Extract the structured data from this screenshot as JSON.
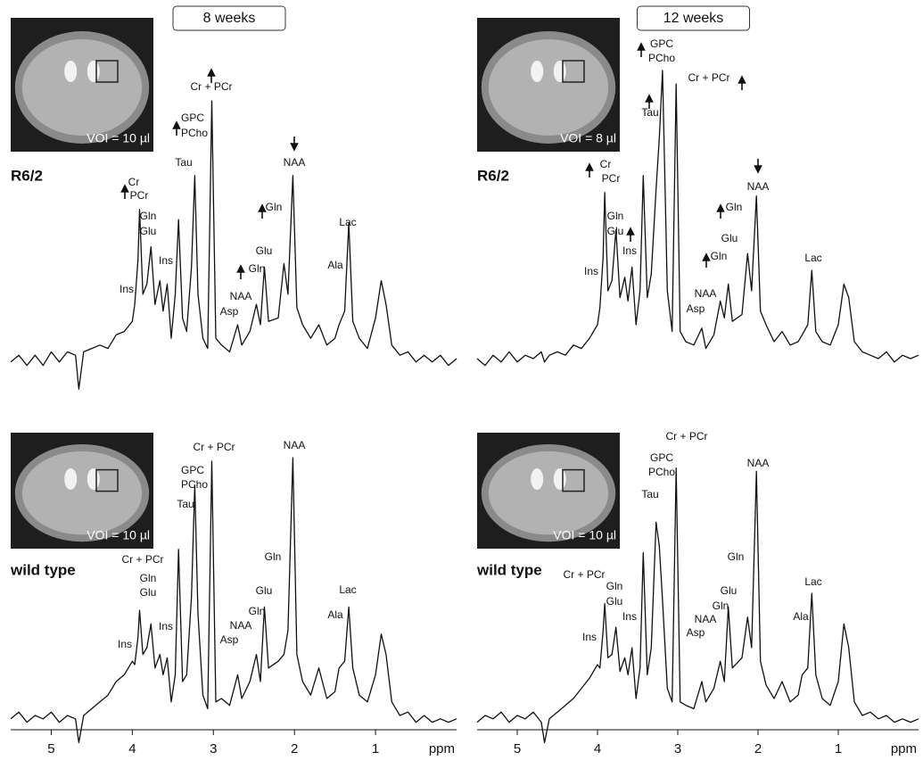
{
  "chart_data": [
    {
      "type": "line",
      "title": "8 weeks",
      "label": "R6/2",
      "image_label": "VOI = 10 µl",
      "x": [
        5.5,
        5.4,
        5.3,
        5.2,
        5.1,
        5.0,
        4.9,
        4.8,
        4.7,
        4.66,
        4.6,
        4.5,
        4.4,
        4.3,
        4.2,
        4.1,
        4.0,
        3.97,
        3.93,
        3.91,
        3.87,
        3.82,
        3.77,
        3.72,
        3.66,
        3.62,
        3.57,
        3.52,
        3.47,
        3.43,
        3.38,
        3.33,
        3.27,
        3.23,
        3.19,
        3.13,
        3.07,
        3.02,
        2.97,
        2.9,
        2.8,
        2.7,
        2.65,
        2.55,
        2.47,
        2.42,
        2.37,
        2.32,
        2.2,
        2.13,
        2.08,
        2.02,
        1.97,
        1.9,
        1.8,
        1.7,
        1.6,
        1.5,
        1.45,
        1.38,
        1.33,
        1.28,
        1.2,
        1.1,
        1.0,
        0.93,
        0.87,
        0.8,
        0.7,
        0.6,
        0.5,
        0.4,
        0.3,
        0.2,
        0.1,
        0.0
      ],
      "values": [
        9,
        11,
        8,
        11,
        8,
        12,
        9,
        12,
        11,
        1,
        12,
        13,
        14,
        13,
        17,
        18,
        21,
        26,
        39,
        54,
        29,
        32,
        43,
        26,
        33,
        24,
        32,
        16,
        29,
        51,
        22,
        18,
        37,
        64,
        29,
        16,
        13,
        86,
        16,
        14,
        12,
        20,
        14,
        18,
        26,
        20,
        37,
        21,
        22,
        38,
        29,
        64,
        25,
        20,
        16,
        20,
        14,
        16,
        20,
        24,
        50,
        21,
        16,
        13,
        22,
        33,
        26,
        14,
        11,
        12,
        9,
        11,
        9,
        11,
        8,
        10
      ],
      "color": "#111111",
      "xlim": [
        5.5,
        0
      ],
      "ylim": [
        0,
        100
      ],
      "annotations": [
        "Cr",
        "PCr",
        "Gln",
        "Glu",
        "Ins",
        "Ins",
        "Tau",
        "GPC",
        "PCho",
        "Cr + PCr",
        "NAA",
        "Gln",
        "Glu",
        "Gln",
        "NAA",
        "Asp",
        "Lac",
        "Ala"
      ]
    },
    {
      "type": "line",
      "title": "12 weeks",
      "label": "R6/2",
      "image_label": "VOI = 8 µl",
      "x": [
        5.5,
        5.4,
        5.3,
        5.2,
        5.1,
        5.0,
        4.9,
        4.8,
        4.7,
        4.66,
        4.6,
        4.5,
        4.4,
        4.3,
        4.2,
        4.1,
        4.0,
        3.97,
        3.93,
        3.91,
        3.87,
        3.82,
        3.77,
        3.72,
        3.66,
        3.62,
        3.57,
        3.52,
        3.47,
        3.43,
        3.38,
        3.33,
        3.27,
        3.23,
        3.19,
        3.13,
        3.07,
        3.02,
        2.97,
        2.9,
        2.8,
        2.7,
        2.65,
        2.55,
        2.47,
        2.42,
        2.37,
        2.32,
        2.2,
        2.13,
        2.08,
        2.02,
        1.97,
        1.9,
        1.8,
        1.7,
        1.6,
        1.5,
        1.45,
        1.38,
        1.33,
        1.28,
        1.2,
        1.1,
        1.0,
        0.93,
        0.87,
        0.8,
        0.7,
        0.6,
        0.5,
        0.4,
        0.3,
        0.2,
        0.1,
        0.0
      ],
      "values": [
        10,
        8,
        11,
        9,
        12,
        9,
        11,
        10,
        12,
        9,
        11,
        12,
        11,
        14,
        13,
        16,
        20,
        25,
        40,
        59,
        30,
        33,
        48,
        28,
        34,
        27,
        37,
        20,
        30,
        64,
        28,
        35,
        60,
        75,
        95,
        30,
        18,
        91,
        18,
        15,
        14,
        19,
        13,
        17,
        27,
        22,
        32,
        21,
        23,
        41,
        30,
        58,
        24,
        20,
        15,
        18,
        14,
        15,
        17,
        20,
        36,
        18,
        15,
        14,
        20,
        32,
        28,
        15,
        12,
        11,
        10,
        12,
        9,
        11,
        10,
        11
      ],
      "color": "#111111",
      "xlim": [
        5.5,
        0
      ],
      "ylim": [
        0,
        100
      ],
      "annotations": [
        "Cr",
        "PCr",
        "Gln",
        "Glu",
        "Ins",
        "Ins",
        "Tau",
        "GPC",
        "PCho",
        "Cr + PCr",
        "NAA",
        "Gln",
        "Glu",
        "Gln",
        "NAA",
        "Asp",
        "Lac"
      ]
    },
    {
      "type": "line",
      "label": "wild type",
      "image_label": "VOI = 10 µl",
      "x": [
        5.5,
        5.4,
        5.3,
        5.2,
        5.1,
        5.0,
        4.9,
        4.8,
        4.7,
        4.66,
        4.6,
        4.5,
        4.4,
        4.3,
        4.2,
        4.1,
        4.0,
        3.97,
        3.93,
        3.91,
        3.87,
        3.82,
        3.77,
        3.72,
        3.66,
        3.62,
        3.57,
        3.52,
        3.47,
        3.43,
        3.38,
        3.33,
        3.27,
        3.23,
        3.19,
        3.13,
        3.07,
        3.02,
        2.97,
        2.9,
        2.8,
        2.7,
        2.65,
        2.55,
        2.47,
        2.42,
        2.37,
        2.32,
        2.2,
        2.13,
        2.08,
        2.02,
        1.97,
        1.9,
        1.8,
        1.7,
        1.6,
        1.5,
        1.45,
        1.38,
        1.33,
        1.28,
        1.2,
        1.1,
        1.0,
        0.93,
        0.87,
        0.8,
        0.7,
        0.6,
        0.5,
        0.4,
        0.3,
        0.2,
        0.1,
        0.0
      ],
      "values": [
        9,
        11,
        8,
        10,
        9,
        11,
        8,
        10,
        9,
        2,
        10,
        12,
        14,
        16,
        20,
        22,
        26,
        25,
        33,
        41,
        28,
        30,
        37,
        24,
        28,
        22,
        27,
        14,
        22,
        59,
        20,
        22,
        45,
        78,
        40,
        16,
        12,
        85,
        14,
        15,
        13,
        22,
        15,
        20,
        28,
        20,
        42,
        24,
        26,
        28,
        35,
        86,
        28,
        20,
        16,
        24,
        15,
        17,
        24,
        26,
        42,
        24,
        16,
        14,
        22,
        34,
        28,
        14,
        10,
        11,
        8,
        10,
        8,
        9,
        8,
        9
      ],
      "color": "#111111",
      "xlim": [
        5.5,
        0
      ],
      "ylim": [
        0,
        100
      ],
      "xticks": [
        5,
        4,
        3,
        2,
        1
      ],
      "xlabel": "ppm",
      "annotations": [
        "Cr + PCr",
        "Gln",
        "Glu",
        "Ins",
        "Ins",
        "Tau",
        "GPC",
        "PCho",
        "Cr + PCr",
        "NAA",
        "Gln",
        "Glu",
        "Gln",
        "NAA",
        "Asp",
        "Lac",
        "Ala"
      ]
    },
    {
      "type": "line",
      "label": "wild type",
      "image_label": "VOI = 10 µl",
      "x": [
        5.5,
        5.4,
        5.3,
        5.2,
        5.1,
        5.0,
        4.9,
        4.8,
        4.7,
        4.66,
        4.6,
        4.5,
        4.4,
        4.3,
        4.2,
        4.1,
        4.0,
        3.97,
        3.93,
        3.91,
        3.87,
        3.82,
        3.77,
        3.72,
        3.66,
        3.62,
        3.57,
        3.52,
        3.47,
        3.43,
        3.38,
        3.33,
        3.27,
        3.23,
        3.19,
        3.13,
        3.07,
        3.02,
        2.97,
        2.9,
        2.8,
        2.7,
        2.65,
        2.55,
        2.47,
        2.42,
        2.37,
        2.32,
        2.2,
        2.13,
        2.08,
        2.02,
        1.97,
        1.9,
        1.8,
        1.7,
        1.6,
        1.5,
        1.45,
        1.38,
        1.33,
        1.28,
        1.2,
        1.1,
        1.0,
        0.93,
        0.87,
        0.8,
        0.7,
        0.6,
        0.5,
        0.4,
        0.3,
        0.2,
        0.1,
        0.0
      ],
      "values": [
        8,
        10,
        9,
        11,
        8,
        10,
        9,
        11,
        8,
        2,
        9,
        11,
        13,
        15,
        18,
        21,
        25,
        24,
        35,
        43,
        27,
        28,
        36,
        23,
        27,
        22,
        30,
        15,
        24,
        58,
        22,
        30,
        67,
        60,
        44,
        18,
        14,
        83,
        14,
        13,
        12,
        20,
        14,
        18,
        26,
        20,
        42,
        24,
        27,
        39,
        30,
        82,
        26,
        19,
        15,
        20,
        14,
        16,
        22,
        24,
        46,
        22,
        15,
        13,
        20,
        37,
        30,
        14,
        10,
        11,
        9,
        10,
        8,
        9,
        8,
        9
      ],
      "color": "#111111",
      "xlim": [
        5.5,
        0
      ],
      "ylim": [
        0,
        100
      ],
      "xticks": [
        5,
        4,
        3,
        2,
        1
      ],
      "xlabel": "ppm",
      "annotations": [
        "Cr + PCr",
        "Gln",
        "Glu",
        "Ins",
        "Ins",
        "Tau",
        "GPC",
        "PCho",
        "Cr + PCr",
        "NAA",
        "Gln",
        "Glu",
        "Gln",
        "NAA",
        "Asp",
        "Lac",
        "Ala"
      ]
    }
  ]
}
